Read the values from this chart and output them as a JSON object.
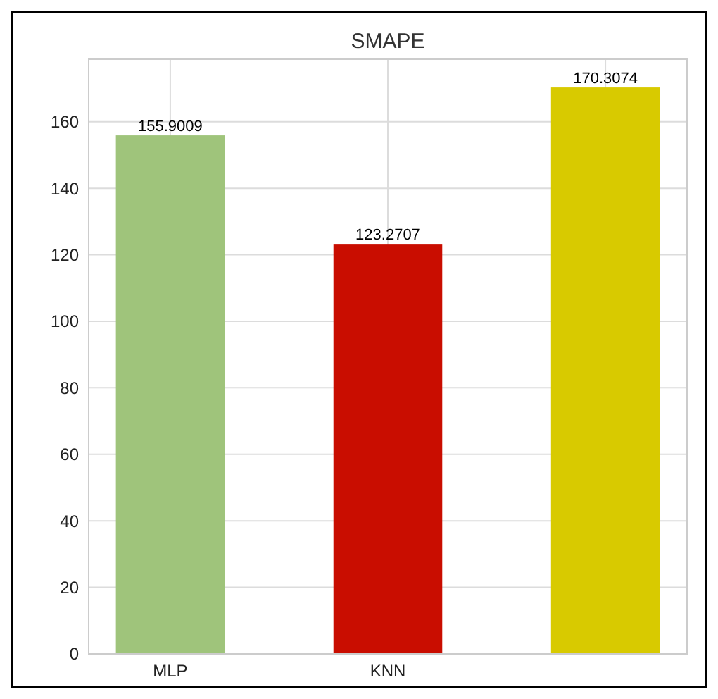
{
  "chart_data": {
    "type": "bar",
    "title": "SMAPE",
    "categories": [
      "MLP",
      "KNN",
      null
    ],
    "values": [
      155.9009,
      123.2707,
      170.3074
    ],
    "colors": [
      "#9fc47b",
      "#c90d00",
      "#d8ca00"
    ],
    "ylim": [
      0,
      178.8
    ],
    "yticks": [
      0,
      20,
      40,
      60,
      80,
      100,
      120,
      140,
      160
    ],
    "grid": true,
    "data_labels": true
  }
}
